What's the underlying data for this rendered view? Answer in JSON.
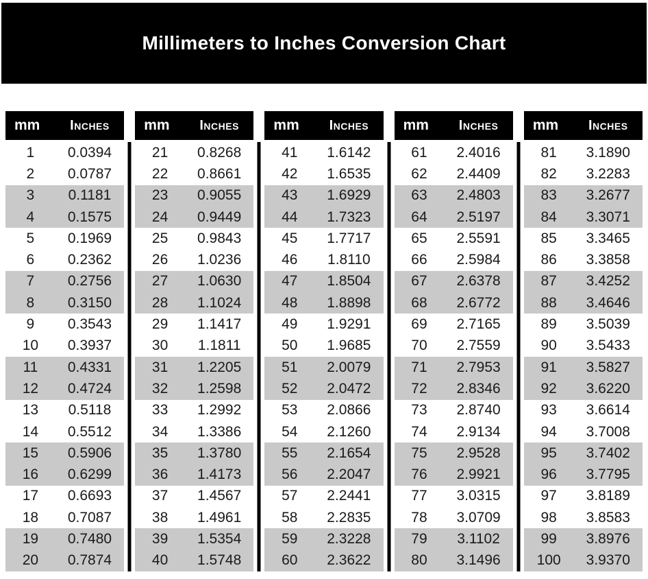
{
  "title": "Millimeters to Inches Conversion Chart",
  "column_headers": {
    "mm": "mm",
    "inches": "Inches"
  },
  "colors": {
    "banner_bg": "#000000",
    "banner_text": "#ffffff",
    "header_bg": "#000000",
    "header_text": "#ffffff",
    "row_bg": "#ffffff",
    "row_stripe_bg": "#c9c9c9",
    "cell_text": "#1a1a1a"
  },
  "layout_hint": {
    "tables": 5,
    "rows_per_table": 20,
    "stripe_pattern": "two-rows-on-two-rows-off"
  },
  "chart_data": {
    "type": "table",
    "title": "Millimeters to Inches Conversion Chart",
    "columns": [
      "mm",
      "Inches"
    ],
    "rows": [
      [
        "1",
        "0.0394"
      ],
      [
        "2",
        "0.0787"
      ],
      [
        "3",
        "0.1181"
      ],
      [
        "4",
        "0.1575"
      ],
      [
        "5",
        "0.1969"
      ],
      [
        "6",
        "0.2362"
      ],
      [
        "7",
        "0.2756"
      ],
      [
        "8",
        "0.3150"
      ],
      [
        "9",
        "0.3543"
      ],
      [
        "10",
        "0.3937"
      ],
      [
        "11",
        "0.4331"
      ],
      [
        "12",
        "0.4724"
      ],
      [
        "13",
        "0.5118"
      ],
      [
        "14",
        "0.5512"
      ],
      [
        "15",
        "0.5906"
      ],
      [
        "16",
        "0.6299"
      ],
      [
        "17",
        "0.6693"
      ],
      [
        "18",
        "0.7087"
      ],
      [
        "19",
        "0.7480"
      ],
      [
        "20",
        "0.7874"
      ],
      [
        "21",
        "0.8268"
      ],
      [
        "22",
        "0.8661"
      ],
      [
        "23",
        "0.9055"
      ],
      [
        "24",
        "0.9449"
      ],
      [
        "25",
        "0.9843"
      ],
      [
        "26",
        "1.0236"
      ],
      [
        "27",
        "1.0630"
      ],
      [
        "28",
        "1.1024"
      ],
      [
        "29",
        "1.1417"
      ],
      [
        "30",
        "1.1811"
      ],
      [
        "31",
        "1.2205"
      ],
      [
        "32",
        "1.2598"
      ],
      [
        "33",
        "1.2992"
      ],
      [
        "34",
        "1.3386"
      ],
      [
        "35",
        "1.3780"
      ],
      [
        "36",
        "1.4173"
      ],
      [
        "37",
        "1.4567"
      ],
      [
        "38",
        "1.4961"
      ],
      [
        "39",
        "1.5354"
      ],
      [
        "40",
        "1.5748"
      ],
      [
        "41",
        "1.6142"
      ],
      [
        "42",
        "1.6535"
      ],
      [
        "43",
        "1.6929"
      ],
      [
        "44",
        "1.7323"
      ],
      [
        "45",
        "1.7717"
      ],
      [
        "46",
        "1.8110"
      ],
      [
        "47",
        "1.8504"
      ],
      [
        "48",
        "1.8898"
      ],
      [
        "49",
        "1.9291"
      ],
      [
        "50",
        "1.9685"
      ],
      [
        "51",
        "2.0079"
      ],
      [
        "52",
        "2.0472"
      ],
      [
        "53",
        "2.0866"
      ],
      [
        "54",
        "2.1260"
      ],
      [
        "55",
        "2.1654"
      ],
      [
        "56",
        "2.2047"
      ],
      [
        "57",
        "2.2441"
      ],
      [
        "58",
        "2.2835"
      ],
      [
        "59",
        "2.3228"
      ],
      [
        "60",
        "2.3622"
      ],
      [
        "61",
        "2.4016"
      ],
      [
        "62",
        "2.4409"
      ],
      [
        "63",
        "2.4803"
      ],
      [
        "64",
        "2.5197"
      ],
      [
        "65",
        "2.5591"
      ],
      [
        "66",
        "2.5984"
      ],
      [
        "67",
        "2.6378"
      ],
      [
        "68",
        "2.6772"
      ],
      [
        "69",
        "2.7165"
      ],
      [
        "70",
        "2.7559"
      ],
      [
        "71",
        "2.7953"
      ],
      [
        "72",
        "2.8346"
      ],
      [
        "73",
        "2.8740"
      ],
      [
        "74",
        "2.9134"
      ],
      [
        "75",
        "2.9528"
      ],
      [
        "76",
        "2.9921"
      ],
      [
        "77",
        "3.0315"
      ],
      [
        "78",
        "3.0709"
      ],
      [
        "79",
        "3.1102"
      ],
      [
        "80",
        "3.1496"
      ],
      [
        "81",
        "3.1890"
      ],
      [
        "82",
        "3.2283"
      ],
      [
        "83",
        "3.2677"
      ],
      [
        "84",
        "3.3071"
      ],
      [
        "85",
        "3.3465"
      ],
      [
        "86",
        "3.3858"
      ],
      [
        "87",
        "3.4252"
      ],
      [
        "88",
        "3.4646"
      ],
      [
        "89",
        "3.5039"
      ],
      [
        "90",
        "3.5433"
      ],
      [
        "91",
        "3.5827"
      ],
      [
        "92",
        "3.6220"
      ],
      [
        "93",
        "3.6614"
      ],
      [
        "94",
        "3.7008"
      ],
      [
        "95",
        "3.7402"
      ],
      [
        "96",
        "3.7795"
      ],
      [
        "97",
        "3.8189"
      ],
      [
        "98",
        "3.8583"
      ],
      [
        "99",
        "3.8976"
      ],
      [
        "100",
        "3.9370"
      ]
    ]
  }
}
